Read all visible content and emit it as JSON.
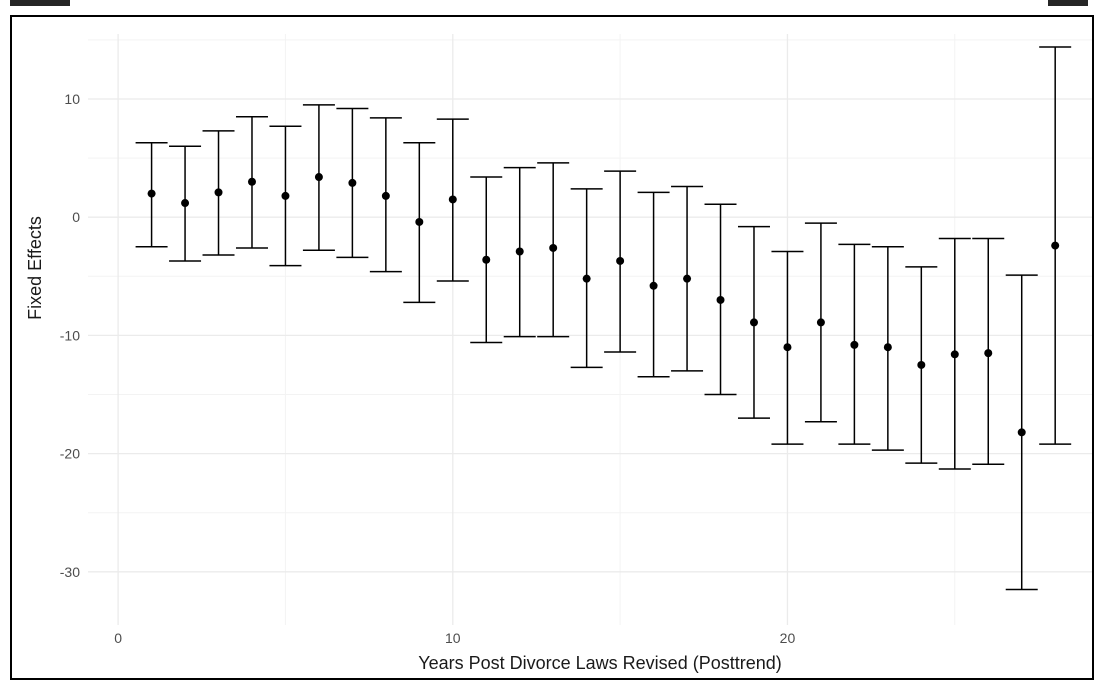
{
  "chart_data": {
    "type": "scatter",
    "title": "",
    "xlabel": "Years Post Divorce Laws Revised (Posttrend)",
    "ylabel": "Fixed Effects",
    "xlim": [
      -0.9,
      29.1
    ],
    "ylim": [
      -34.5,
      15.5
    ],
    "x_ticks": [
      0,
      10,
      20
    ],
    "x_tick_labels": [
      "0",
      "10",
      "20"
    ],
    "y_ticks": [
      10,
      0,
      -10,
      -20,
      -30
    ],
    "y_tick_labels": [
      "10",
      "0",
      "-10",
      "-20",
      "-30"
    ],
    "grid": true,
    "legend": "none",
    "points": [
      {
        "x": 1,
        "y": 2.0,
        "lower": -2.5,
        "upper": 6.3
      },
      {
        "x": 2,
        "y": 1.2,
        "lower": -3.7,
        "upper": 6.0
      },
      {
        "x": 3,
        "y": 2.1,
        "lower": -3.2,
        "upper": 7.3
      },
      {
        "x": 4,
        "y": 3.0,
        "lower": -2.6,
        "upper": 8.5
      },
      {
        "x": 5,
        "y": 1.8,
        "lower": -4.1,
        "upper": 7.7
      },
      {
        "x": 6,
        "y": 3.4,
        "lower": -2.8,
        "upper": 9.5
      },
      {
        "x": 7,
        "y": 2.9,
        "lower": -3.4,
        "upper": 9.2
      },
      {
        "x": 8,
        "y": 1.8,
        "lower": -4.6,
        "upper": 8.4
      },
      {
        "x": 9,
        "y": -0.4,
        "lower": -7.2,
        "upper": 6.3
      },
      {
        "x": 10,
        "y": 1.5,
        "lower": -5.4,
        "upper": 8.3
      },
      {
        "x": 11,
        "y": -3.6,
        "lower": -10.6,
        "upper": 3.4
      },
      {
        "x": 12,
        "y": -2.9,
        "lower": -10.1,
        "upper": 4.2
      },
      {
        "x": 13,
        "y": -2.6,
        "lower": -10.1,
        "upper": 4.6
      },
      {
        "x": 14,
        "y": -5.2,
        "lower": -12.7,
        "upper": 2.4
      },
      {
        "x": 15,
        "y": -3.7,
        "lower": -11.4,
        "upper": 3.9
      },
      {
        "x": 16,
        "y": -5.8,
        "lower": -13.5,
        "upper": 2.1
      },
      {
        "x": 17,
        "y": -5.2,
        "lower": -13.0,
        "upper": 2.6
      },
      {
        "x": 18,
        "y": -7.0,
        "lower": -15.0,
        "upper": 1.1
      },
      {
        "x": 19,
        "y": -8.9,
        "lower": -17.0,
        "upper": -0.8
      },
      {
        "x": 20,
        "y": -11.0,
        "lower": -19.2,
        "upper": -2.9
      },
      {
        "x": 21,
        "y": -8.9,
        "lower": -17.3,
        "upper": -0.5
      },
      {
        "x": 22,
        "y": -10.8,
        "lower": -19.2,
        "upper": -2.3
      },
      {
        "x": 23,
        "y": -11.0,
        "lower": -19.7,
        "upper": -2.5
      },
      {
        "x": 24,
        "y": -12.5,
        "lower": -20.8,
        "upper": -4.2
      },
      {
        "x": 25,
        "y": -11.6,
        "lower": -21.3,
        "upper": -1.8
      },
      {
        "x": 26,
        "y": -11.5,
        "lower": -20.9,
        "upper": -1.8
      },
      {
        "x": 27,
        "y": -18.2,
        "lower": -31.5,
        "upper": -4.9
      },
      {
        "x": 28,
        "y": -2.4,
        "lower": -19.2,
        "upper": 14.4
      }
    ],
    "colors": {
      "point": "#000000",
      "errorbar": "#000000",
      "grid_major": "#ebebeb",
      "grid_minor": "#f3f3f3",
      "tick_label": "#4d4d4d",
      "axis_title": "#1a1a1a"
    }
  }
}
